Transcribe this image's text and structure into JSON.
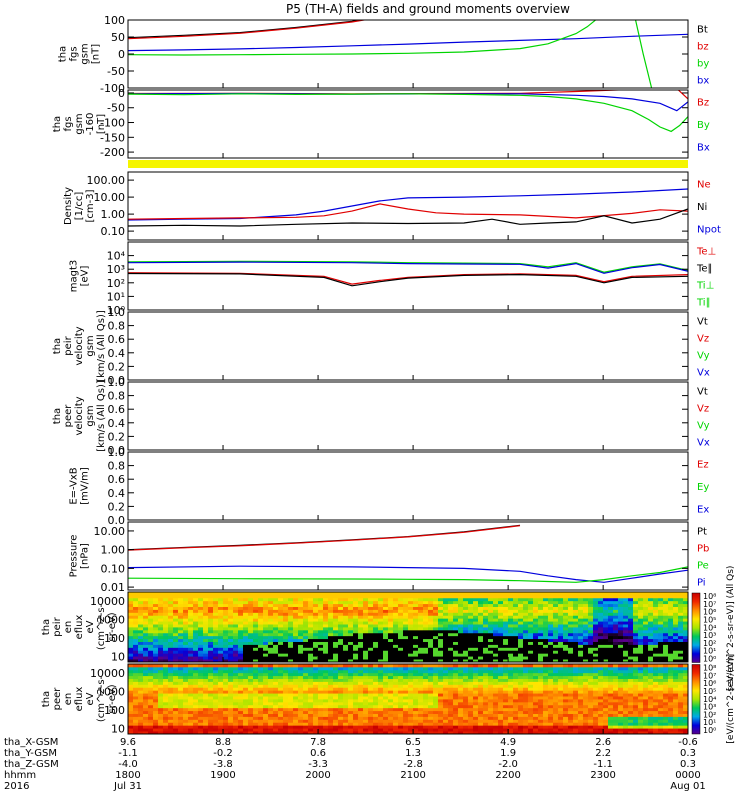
{
  "title": "P5 (TH-A) fields and ground moments overview",
  "colors": {
    "black": "#000000",
    "red": "#e00000",
    "green": "#00d400",
    "blue": "#0000dd",
    "yellow": "#f5f500"
  },
  "chart_data": [
    {
      "id": "fgs",
      "type": "line",
      "ylabel": [
        "tha",
        "fgs",
        "gsm",
        "[nT]"
      ],
      "ylim": [
        -100,
        100
      ],
      "yticks": [
        100,
        50,
        0,
        -50,
        -100
      ],
      "legend": [
        {
          "label": "Bt",
          "color": "black"
        },
        {
          "label": "bz",
          "color": "red"
        },
        {
          "label": "by",
          "color": "green"
        },
        {
          "label": "bx",
          "color": "blue"
        }
      ],
      "series": [
        {
          "name": "Bt",
          "color": "black",
          "x": [
            0,
            0.1,
            0.2,
            0.3,
            0.4,
            0.45
          ],
          "y": [
            48,
            55,
            63,
            78,
            96,
            110
          ]
        },
        {
          "name": "bz",
          "color": "red",
          "x": [
            0,
            0.1,
            0.2,
            0.3,
            0.4,
            0.45
          ],
          "y": [
            45,
            52,
            61,
            76,
            94,
            108
          ]
        },
        {
          "name": "bx",
          "color": "blue",
          "x": [
            0,
            0.1,
            0.2,
            0.3,
            0.4,
            0.5,
            0.6,
            0.7,
            0.8,
            0.9,
            1.0
          ],
          "y": [
            10,
            12,
            15,
            19,
            24,
            29,
            35,
            40,
            45,
            52,
            58
          ]
        },
        {
          "name": "by",
          "color": "green",
          "x": [
            0,
            0.1,
            0.2,
            0.3,
            0.4,
            0.5,
            0.6,
            0.7,
            0.75,
            0.8,
            0.82,
            0.835,
            0.84
          ],
          "y": [
            -2,
            -3,
            -2,
            -1,
            0,
            2,
            6,
            16,
            30,
            60,
            80,
            100,
            110
          ]
        },
        {
          "name": "by-end",
          "color": "green",
          "x": [
            0.905,
            0.92,
            0.935
          ],
          "y": [
            110,
            0,
            -100
          ]
        }
      ]
    },
    {
      "id": "fgs2",
      "type": "line",
      "ylabel": [
        "tha",
        "fgs",
        "gsm",
        "-160",
        "[nT]"
      ],
      "ylim": [
        -220,
        10
      ],
      "yticks": [
        0,
        -50,
        -100,
        -150,
        -200
      ],
      "legend": [
        {
          "label": "Bz",
          "color": "red"
        },
        {
          "label": "By",
          "color": "green"
        },
        {
          "label": "Bx",
          "color": "blue"
        }
      ],
      "series": [
        {
          "name": "Bz",
          "color": "red",
          "x": [
            0,
            0.2,
            0.4,
            0.6,
            0.7,
            0.8,
            0.9,
            0.95,
            0.98,
            1.0
          ],
          "y": [
            -2,
            -1,
            -3,
            -2,
            -1,
            5,
            12,
            20,
            15,
            -20
          ]
        },
        {
          "name": "Bx",
          "color": "blue",
          "x": [
            0,
            0.2,
            0.4,
            0.6,
            0.7,
            0.8,
            0.85,
            0.9,
            0.95,
            0.98,
            1.0
          ],
          "y": [
            -3,
            -2,
            -4,
            -3,
            -3,
            -8,
            -12,
            -20,
            -35,
            -60,
            -30
          ]
        },
        {
          "name": "By",
          "color": "green",
          "x": [
            0,
            0.1,
            0.2,
            0.3,
            0.4,
            0.5,
            0.6,
            0.7,
            0.75,
            0.8,
            0.85,
            0.9,
            0.93,
            0.95,
            0.97,
            0.985,
            1.0
          ],
          "y": [
            -4,
            -6,
            -3,
            -5,
            -4,
            -3,
            -5,
            -8,
            -12,
            -20,
            -35,
            -60,
            -90,
            -115,
            -130,
            -110,
            -80
          ]
        }
      ]
    },
    {
      "id": "density",
      "type": "line",
      "scale": "log",
      "ylabel": [
        "Density",
        "[1/cc]",
        "[cm-3]"
      ],
      "ylim": [
        0.03,
        300
      ],
      "yticks": [
        100.0,
        10.0,
        1.0,
        0.1
      ],
      "ytick_labels": [
        "100.00",
        "10.00",
        "1.00",
        "0.10"
      ],
      "legend": [
        {
          "label": "Ne",
          "color": "red"
        },
        {
          "label": "Ni",
          "color": "black"
        },
        {
          "label": "Npot",
          "color": "blue"
        }
      ],
      "series": [
        {
          "name": "Npot",
          "color": "blue",
          "x": [
            0,
            0.1,
            0.2,
            0.3,
            0.35,
            0.4,
            0.45,
            0.5,
            0.6,
            0.7,
            0.8,
            0.9,
            1.0
          ],
          "y": [
            0.45,
            0.5,
            0.55,
            0.9,
            1.5,
            3,
            6,
            9,
            10,
            12,
            15,
            20,
            30
          ]
        },
        {
          "name": "Ne",
          "color": "red",
          "x": [
            0,
            0.1,
            0.2,
            0.3,
            0.35,
            0.4,
            0.45,
            0.5,
            0.55,
            0.6,
            0.7,
            0.8,
            0.9,
            0.95,
            1.0
          ],
          "y": [
            0.5,
            0.55,
            0.6,
            0.65,
            0.8,
            1.5,
            4,
            2,
            1.2,
            1.0,
            0.9,
            0.6,
            1.1,
            1.8,
            1.5
          ]
        },
        {
          "name": "Ni",
          "color": "black",
          "x": [
            0,
            0.1,
            0.2,
            0.3,
            0.4,
            0.5,
            0.6,
            0.65,
            0.7,
            0.75,
            0.8,
            0.85,
            0.9,
            0.95,
            1.0
          ],
          "y": [
            0.2,
            0.22,
            0.2,
            0.25,
            0.3,
            0.28,
            0.3,
            0.5,
            0.25,
            0.3,
            0.35,
            0.8,
            0.3,
            0.5,
            2
          ]
        }
      ]
    },
    {
      "id": "temp",
      "type": "line",
      "scale": "log",
      "ylabel": [
        "magt3",
        "[eV]"
      ],
      "ylim": [
        1,
        100000
      ],
      "yticks": [
        10000,
        1000,
        100,
        10,
        1
      ],
      "ytick_labels": [
        "10⁴",
        "10³",
        "10²",
        "10¹",
        "10⁰"
      ],
      "legend": [
        {
          "label": "Te⊥",
          "color": "red"
        },
        {
          "label": "Te∥",
          "color": "black"
        },
        {
          "label": "Ti⊥",
          "color": "green"
        },
        {
          "label": "Ti∥",
          "color": "green"
        }
      ],
      "series": [
        {
          "name": "Ti⊥",
          "color": "green",
          "x": [
            0,
            0.2,
            0.4,
            0.5,
            0.6,
            0.7,
            0.75,
            0.8,
            0.85,
            0.9,
            0.95,
            1.0
          ],
          "y": [
            3500,
            3800,
            3500,
            3000,
            2800,
            2600,
            1500,
            3000,
            600,
            1500,
            2500,
            800
          ]
        },
        {
          "name": "Ti∥",
          "color": "blue",
          "x": [
            0,
            0.2,
            0.4,
            0.5,
            0.6,
            0.7,
            0.75,
            0.8,
            0.85,
            0.9,
            0.95,
            1.0
          ],
          "y": [
            3000,
            3300,
            3000,
            2600,
            2400,
            2300,
            1200,
            2600,
            500,
            1300,
            2200,
            700
          ]
        },
        {
          "name": "Te⊥",
          "color": "red",
          "x": [
            0,
            0.2,
            0.35,
            0.4,
            0.45,
            0.5,
            0.6,
            0.7,
            0.8,
            0.85,
            0.9,
            1.0
          ],
          "y": [
            550,
            500,
            300,
            80,
            150,
            250,
            400,
            450,
            350,
            120,
            300,
            400
          ]
        },
        {
          "name": "Te∥",
          "color": "black",
          "x": [
            0,
            0.2,
            0.35,
            0.4,
            0.45,
            0.5,
            0.6,
            0.7,
            0.8,
            0.85,
            0.9,
            1.0
          ],
          "y": [
            480,
            450,
            250,
            60,
            120,
            220,
            350,
            400,
            300,
            100,
            250,
            300
          ]
        }
      ]
    },
    {
      "id": "peir_vel",
      "type": "line",
      "ylabel": [
        "tha",
        "peir",
        "velocity",
        "gsm",
        "[km/s (All Qs)]"
      ],
      "ylim": [
        0,
        1
      ],
      "yticks": [
        1.0,
        0.8,
        0.6,
        0.4,
        0.2,
        0.0
      ],
      "ytick_labels": [
        "1.0",
        "0.8",
        "0.6",
        "0.4",
        "0.2",
        "0.0"
      ],
      "legend": [
        {
          "label": "Vt",
          "color": "black"
        },
        {
          "label": "Vz",
          "color": "red"
        },
        {
          "label": "Vy",
          "color": "green"
        },
        {
          "label": "Vx",
          "color": "blue"
        }
      ],
      "series": []
    },
    {
      "id": "peer_vel",
      "type": "line",
      "ylabel": [
        "tha",
        "peer",
        "velocity",
        "gsm",
        "[km/s (All Qs)]"
      ],
      "ylim": [
        0,
        1
      ],
      "yticks": [
        1.0,
        0.8,
        0.6,
        0.4,
        0.2,
        0.0
      ],
      "ytick_labels": [
        "1.0",
        "0.8",
        "0.6",
        "0.4",
        "0.2",
        "0.0"
      ],
      "legend": [
        {
          "label": "Vt",
          "color": "black"
        },
        {
          "label": "Vz",
          "color": "red"
        },
        {
          "label": "Vy",
          "color": "green"
        },
        {
          "label": "Vx",
          "color": "blue"
        }
      ],
      "series": []
    },
    {
      "id": "efield",
      "type": "line",
      "ylabel": [
        "E=-VxB",
        "[mV/m]"
      ],
      "ylim": [
        0,
        1
      ],
      "yticks": [
        1.0,
        0.8,
        0.6,
        0.4,
        0.2,
        0.0
      ],
      "ytick_labels": [
        "1.0",
        "0.8",
        "0.6",
        "0.4",
        "0.2",
        "0.0"
      ],
      "legend": [
        {
          "label": "Ez",
          "color": "red"
        },
        {
          "label": "Ey",
          "color": "green"
        },
        {
          "label": "Ex",
          "color": "blue"
        }
      ],
      "series": []
    },
    {
      "id": "pressure",
      "type": "line",
      "scale": "log",
      "ylabel": [
        "Pressure",
        "[nPa]"
      ],
      "ylim": [
        0.007,
        30
      ],
      "yticks": [
        10.0,
        1.0,
        0.1,
        0.01
      ],
      "ytick_labels": [
        "10.00",
        "1.00",
        "0.10",
        "0.01"
      ],
      "legend": [
        {
          "label": "Pt",
          "color": "black"
        },
        {
          "label": "Pb",
          "color": "red"
        },
        {
          "label": "Pe",
          "color": "green"
        },
        {
          "label": "Pi",
          "color": "blue"
        }
      ],
      "series": [
        {
          "name": "Pt",
          "color": "black",
          "x": [
            0,
            0.1,
            0.2,
            0.3,
            0.4,
            0.5,
            0.6,
            0.7
          ],
          "y": [
            1.0,
            1.3,
            1.7,
            2.3,
            3.3,
            5,
            9,
            20
          ]
        },
        {
          "name": "Pb",
          "color": "red",
          "x": [
            0,
            0.1,
            0.2,
            0.3,
            0.4,
            0.5,
            0.6,
            0.7
          ],
          "y": [
            0.95,
            1.25,
            1.6,
            2.2,
            3.2,
            4.8,
            8.5,
            19
          ]
        },
        {
          "name": "Pi",
          "color": "blue",
          "x": [
            0,
            0.2,
            0.4,
            0.5,
            0.6,
            0.7,
            0.75,
            0.8,
            0.85,
            0.9,
            0.95,
            1.0
          ],
          "y": [
            0.11,
            0.13,
            0.12,
            0.11,
            0.1,
            0.07,
            0.04,
            0.025,
            0.018,
            0.03,
            0.05,
            0.08
          ]
        },
        {
          "name": "Pe",
          "color": "green",
          "x": [
            0,
            0.2,
            0.4,
            0.5,
            0.6,
            0.7,
            0.75,
            0.8,
            0.85,
            0.9,
            0.95,
            1.0
          ],
          "y": [
            0.03,
            0.028,
            0.027,
            0.026,
            0.025,
            0.022,
            0.02,
            0.018,
            0.025,
            0.04,
            0.06,
            0.12
          ]
        }
      ]
    },
    {
      "id": "peir_spec",
      "type": "heatmap",
      "scale": "log",
      "ylabel": [
        "tha",
        "peir",
        "en",
        "eflux",
        "eV",
        "(cm^2-s-",
        "sr-eV)"
      ],
      "ylim": [
        5,
        30000
      ],
      "yticks": [
        10000,
        1000,
        100,
        10
      ],
      "ytick_labels": [
        "10000",
        "1000",
        "100",
        "10"
      ]
    },
    {
      "id": "peer_spec",
      "type": "heatmap",
      "scale": "log",
      "ylabel": [
        "tha",
        "peer",
        "en",
        "eflux",
        "eV",
        "(cm^2-s-",
        "sr-eV)"
      ],
      "ylim": [
        5,
        30000
      ],
      "yticks": [
        10000,
        1000,
        100,
        10
      ],
      "ytick_labels": [
        "10000",
        "1000",
        "100",
        "10"
      ]
    }
  ],
  "colorbar": {
    "label": "[eV/(cm^2-s-sr-eV)] (All Qs)",
    "label2": "[eV/(cm^2-s-sr-eV)]",
    "ticks1": [
      "10⁸",
      "10⁷",
      "10⁶",
      "10⁵",
      "10⁴",
      "10³",
      "10²",
      "10¹",
      "10⁰"
    ],
    "ticks2": [
      "10⁸",
      "10⁷",
      "10⁶",
      "10⁵",
      "10⁴",
      "10³",
      "10²",
      "10¹",
      "10⁰"
    ]
  },
  "xaxis": {
    "ticks": [
      {
        "pos": 0.0,
        "x": "9.6",
        "y": "-1.1",
        "z": "-4.0",
        "t": "1800",
        "d": "Jul 31"
      },
      {
        "pos": 0.1697,
        "x": "8.8",
        "y": "-0.2",
        "z": "-3.8",
        "t": "1900",
        "d": ""
      },
      {
        "pos": 0.3394,
        "x": "7.8",
        "y": "0.6",
        "z": "-3.3",
        "t": "2000",
        "d": ""
      },
      {
        "pos": 0.5091,
        "x": "6.5",
        "y": "1.3",
        "z": "-2.8",
        "t": "2100",
        "d": ""
      },
      {
        "pos": 0.6788,
        "x": "4.9",
        "y": "1.9",
        "z": "-2.0",
        "t": "2200",
        "d": ""
      },
      {
        "pos": 0.8485,
        "x": "2.6",
        "y": "2.2",
        "z": "-1.1",
        "t": "2300",
        "d": ""
      },
      {
        "pos": 1.0,
        "x": "-0.6",
        "y": "0.3",
        "z": "0.3",
        "t": "0000",
        "d": "Aug 01"
      }
    ],
    "rows": [
      {
        "label": "tha_X-GSM",
        "key": "x"
      },
      {
        "label": "tha_Y-GSM",
        "key": "y"
      },
      {
        "label": "tha_Z-GSM",
        "key": "z"
      },
      {
        "label": "hhmm",
        "key": "t"
      },
      {
        "label": "2016",
        "key": "d"
      }
    ]
  }
}
